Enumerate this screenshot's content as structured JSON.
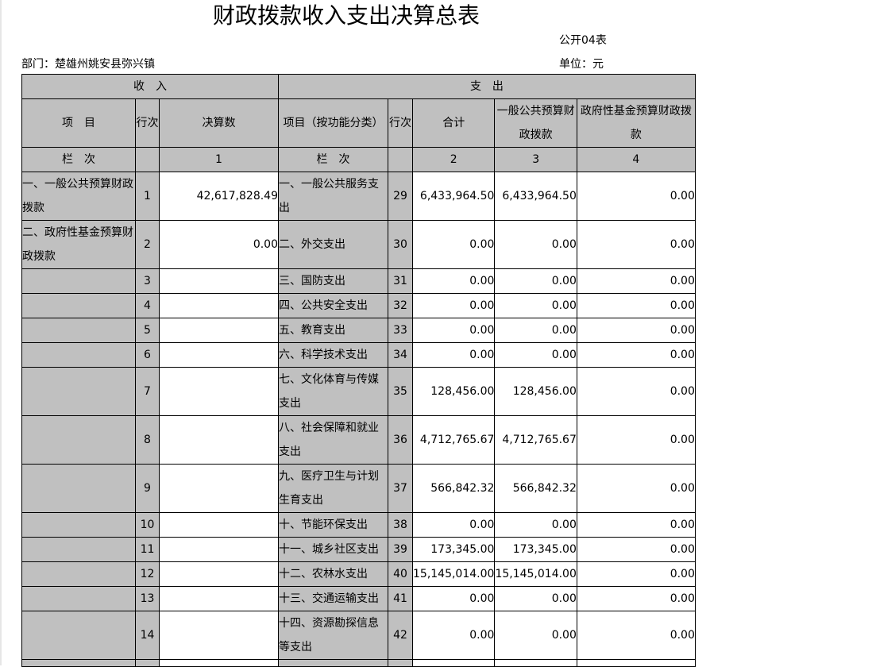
{
  "title": "财政拨款收入支出决算总表",
  "form_no": "公开04表",
  "department": "部门：楚雄州姚安县弥兴镇",
  "unit": "单位：元",
  "header": {
    "income": "收　入",
    "expense": "支　出",
    "item": "项　目",
    "line_no": "行次",
    "amount": "决算数",
    "exp_item": "项目（按功能分类）",
    "exp_line_no": "行次",
    "total": "合计",
    "general": "一般公共预算财政拨款",
    "fund": "政府性基金预算财政拨款",
    "col_label": "栏　次",
    "col1": "1",
    "exp_col_label": "栏　次",
    "col2": "2",
    "col3": "3",
    "col4": "4"
  },
  "rows": [
    {
      "in_item": "一、一般公共预算财政拨款",
      "in_no": "1",
      "in_amt": "42,617,828.49",
      "ex_item": "一、一般公共服务支出",
      "ex_no": "29",
      "total": "6,433,964.50",
      "general": "6,433,964.50",
      "fund": "0.00",
      "tall": true
    },
    {
      "in_item": "二、政府性基金预算财政拨款",
      "in_no": "2",
      "in_amt": "0.00",
      "ex_item": "二、外交支出",
      "ex_no": "30",
      "total": "0.00",
      "general": "0.00",
      "fund": "0.00",
      "tall": true
    },
    {
      "in_item": "",
      "in_no": "3",
      "in_amt": "",
      "ex_item": "三、国防支出",
      "ex_no": "31",
      "total": "0.00",
      "general": "0.00",
      "fund": "0.00"
    },
    {
      "in_item": "",
      "in_no": "4",
      "in_amt": "",
      "ex_item": "四、公共安全支出",
      "ex_no": "32",
      "total": "0.00",
      "general": "0.00",
      "fund": "0.00"
    },
    {
      "in_item": "",
      "in_no": "5",
      "in_amt": "",
      "ex_item": "五、教育支出",
      "ex_no": "33",
      "total": "0.00",
      "general": "0.00",
      "fund": "0.00"
    },
    {
      "in_item": "",
      "in_no": "6",
      "in_amt": "",
      "ex_item": "六、科学技术支出",
      "ex_no": "34",
      "total": "0.00",
      "general": "0.00",
      "fund": "0.00"
    },
    {
      "in_item": "",
      "in_no": "7",
      "in_amt": "",
      "ex_item": "七、文化体育与传媒支出",
      "ex_no": "35",
      "total": "128,456.00",
      "general": "128,456.00",
      "fund": "0.00",
      "tall": true
    },
    {
      "in_item": "",
      "in_no": "8",
      "in_amt": "",
      "ex_item": "八、社会保障和就业支出",
      "ex_no": "36",
      "total": "4,712,765.67",
      "general": "4,712,765.67",
      "fund": "0.00",
      "tall": true
    },
    {
      "in_item": "",
      "in_no": "9",
      "in_amt": "",
      "ex_item": "九、医疗卫生与计划生育支出",
      "ex_no": "37",
      "total": "566,842.32",
      "general": "566,842.32",
      "fund": "0.00",
      "tall": true
    },
    {
      "in_item": "",
      "in_no": "10",
      "in_amt": "",
      "ex_item": "十、节能环保支出",
      "ex_no": "38",
      "total": "0.00",
      "general": "0.00",
      "fund": "0.00"
    },
    {
      "in_item": "",
      "in_no": "11",
      "in_amt": "",
      "ex_item": "十一、城乡社区支出",
      "ex_no": "39",
      "total": "173,345.00",
      "general": "173,345.00",
      "fund": "0.00"
    },
    {
      "in_item": "",
      "in_no": "12",
      "in_amt": "",
      "ex_item": "十二、农林水支出",
      "ex_no": "40",
      "total": "15,145,014.00",
      "general": "15,145,014.00",
      "fund": "0.00"
    },
    {
      "in_item": "",
      "in_no": "13",
      "in_amt": "",
      "ex_item": "十三、交通运输支出",
      "ex_no": "41",
      "total": "0.00",
      "general": "0.00",
      "fund": "0.00"
    },
    {
      "in_item": "",
      "in_no": "14",
      "in_amt": "",
      "ex_item": "十四、资源勘探信息等支出",
      "ex_no": "42",
      "total": "0.00",
      "general": "0.00",
      "fund": "0.00",
      "tall": true
    }
  ]
}
